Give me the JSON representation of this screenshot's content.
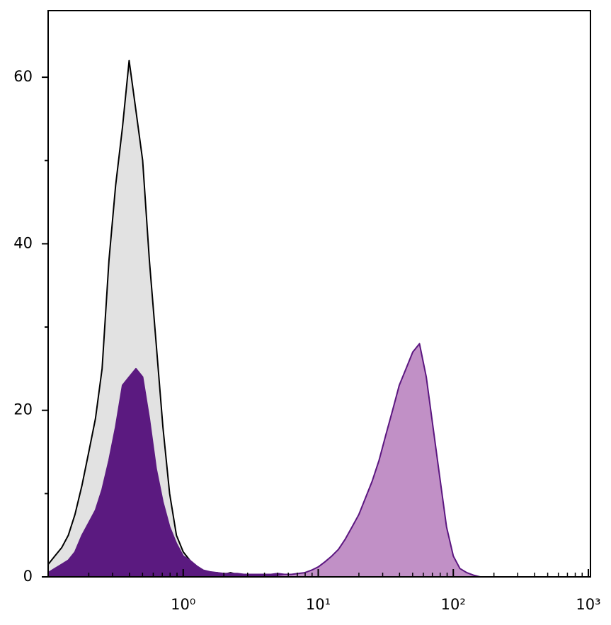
{
  "chart_data": {
    "type": "histogram-overlay",
    "xlim": [
      0.1,
      1000
    ],
    "ylim": [
      0,
      68
    ],
    "xscale": "log",
    "xticks": [
      {
        "value": 1,
        "label": "10⁰"
      },
      {
        "value": 10,
        "label": "10¹"
      },
      {
        "value": 100,
        "label": "10²"
      },
      {
        "value": 1000,
        "label": "10³"
      }
    ],
    "yticks": [
      0,
      20,
      40,
      60
    ],
    "yminorticks": [
      10,
      30,
      50
    ],
    "x": [
      0.1,
      0.112,
      0.126,
      0.141,
      0.158,
      0.178,
      0.2,
      0.224,
      0.251,
      0.282,
      0.316,
      0.355,
      0.398,
      0.447,
      0.501,
      0.562,
      0.631,
      0.708,
      0.794,
      0.891,
      1,
      1.12,
      1.26,
      1.41,
      1.58,
      1.78,
      2,
      2.24,
      2.51,
      2.82,
      3.16,
      3.55,
      3.98,
      4.47,
      5.01,
      5.62,
      6.31,
      7.08,
      7.94,
      8.91,
      10,
      11.2,
      12.6,
      14.1,
      15.8,
      17.8,
      20,
      22.4,
      25.1,
      28.2,
      31.6,
      35.5,
      39.8,
      44.7,
      50.1,
      56.2,
      63.1,
      70.8,
      79.4,
      89.1,
      100,
      112,
      126,
      141,
      158
    ],
    "series": [
      {
        "color": "#e2e2e2",
        "stroke": "#000000",
        "values": [
          1.5,
          2.5,
          3.5,
          5,
          7.5,
          11,
          15,
          19,
          25,
          38,
          47,
          54,
          62,
          56,
          50,
          38,
          28,
          18,
          10,
          5,
          3,
          2,
          1,
          0.5,
          0.3,
          0.5,
          0.3,
          0.5,
          0.3,
          0.3,
          0.2,
          0.3,
          0.2,
          0.2,
          0,
          0,
          0,
          0,
          0,
          0,
          0,
          0,
          0,
          0,
          0,
          0,
          0,
          0,
          0,
          0,
          0,
          0,
          0,
          0,
          0,
          0,
          0,
          0,
          0,
          0,
          0,
          0,
          0,
          0,
          0
        ]
      },
      {
        "color": "#5b1a80",
        "stroke": "#5b1a80",
        "values": [
          0.5,
          1,
          1.5,
          2,
          3,
          5,
          6.5,
          8,
          10.5,
          14,
          18,
          23,
          24,
          25,
          24,
          19,
          13,
          9,
          6,
          4,
          2.5,
          2,
          1.3,
          0.8,
          0.6,
          0.5,
          0.4,
          0.4,
          0.4,
          0.3,
          0.3,
          0.3,
          0.3,
          0.3,
          0.4,
          0.3,
          0.3,
          0.3,
          0.2,
          0.2,
          0.2,
          0.2,
          0.2,
          0.1,
          0,
          0,
          0,
          0,
          0,
          0,
          0,
          0,
          0,
          0,
          0,
          0,
          0,
          0,
          0,
          0,
          0,
          0,
          0,
          0,
          0
        ]
      },
      {
        "color": "#c190c6",
        "stroke": "#5b1680",
        "values": [
          0,
          0,
          0,
          0,
          0,
          0,
          0,
          0,
          0,
          0,
          0,
          0,
          0,
          0,
          0,
          0,
          0,
          0,
          0,
          0,
          0,
          0,
          0,
          0,
          0,
          0,
          0,
          0,
          0,
          0,
          0,
          0,
          0,
          0,
          0.2,
          0.3,
          0.3,
          0.4,
          0.5,
          0.8,
          1.2,
          1.8,
          2.5,
          3.3,
          4.5,
          6,
          7.5,
          9.5,
          11.5,
          14,
          17,
          20,
          23,
          25,
          27,
          28,
          24,
          18,
          12,
          6,
          2.5,
          1,
          0.5,
          0.2,
          0
        ]
      }
    ]
  }
}
